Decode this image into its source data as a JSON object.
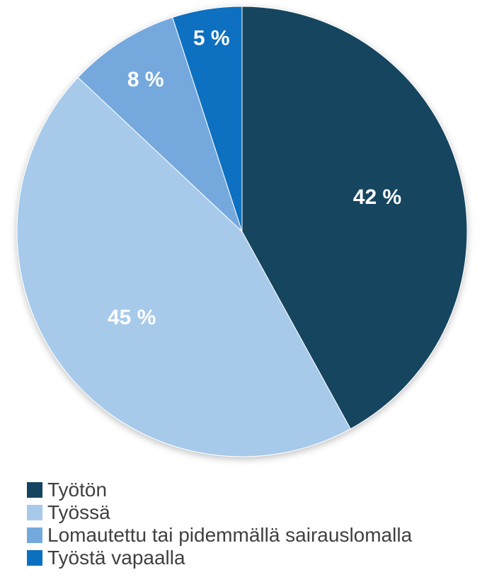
{
  "chart_data": {
    "type": "pie",
    "title": "",
    "slices": [
      {
        "name": "Työtön",
        "value": 42,
        "label": "42 %",
        "color": "#14445f"
      },
      {
        "name": "Työssä",
        "value": 45,
        "label": "45 %",
        "color": "#a7caeb"
      },
      {
        "name": "Lomautettu tai pidemmällä sairauslomalla",
        "value": 8,
        "label": "8 %",
        "color": "#74a9de"
      },
      {
        "name": "Työstä vapaalla",
        "value": 5,
        "label": "5 %",
        "color": "#0c70c0"
      }
    ],
    "start_angle": "12 o'clock",
    "direction": "clockwise",
    "legend_position": "bottom"
  }
}
